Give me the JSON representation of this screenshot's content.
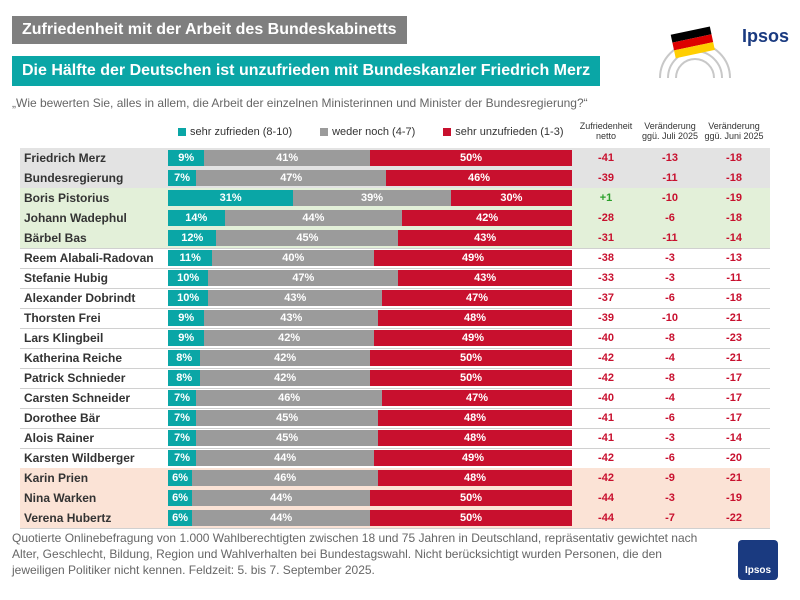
{
  "title": "Zufriedenheit mit der Arbeit des Bundeskabinetts",
  "subtitle": "Die Hälfte der Deutschen ist unzufrieden mit Bundeskanzler Friedrich Merz",
  "question": "„Wie bewerten Sie, alles in allem, die Arbeit der einzelnen Ministerinnen und Minister der Bundesregierung?“",
  "brand": "Ipsos",
  "legend": [
    "sehr zufrieden (8-10)",
    "weder noch (4-7)",
    "sehr unzufrieden (1-3)"
  ],
  "col_netto": "Zufriedenheit netto",
  "col_juli": "Veränderung ggü. Juli 2025",
  "col_juni": "Veränderung ggü. Juni 2025",
  "footnote": "Quotierte Onlinebefragung von 1.000 Wahlberechtigten zwischen 18 und 75 Jahren in Deutschland, repräsentativ gewichtet nach Alter, Geschlecht, Bildung, Region und Wahlverhalten bei Bundestagswahl. Nicht berücksichtigt wurden Personen, die den jeweiligen Politiker nicht kennen. Feldzeit: 5. bis 7. September 2025.",
  "colors": {
    "zufrieden": "#0aa6a6",
    "weder": "#9b9b9b",
    "unzufrieden": "#c8102e",
    "bg_gray": "#e3e3e3",
    "bg_green": "#e3f0d9",
    "bg_peach": "#fbe3d6",
    "pos": "#2aa02a",
    "neg": "#c8102e"
  },
  "chart_data": {
    "type": "bar",
    "orientation": "horizontal",
    "stacked": true,
    "categories": [
      "Friedrich Merz",
      "Bundesregierung",
      "Boris Pistorius",
      "Johann Wadephul",
      "Bärbel Bas",
      "Reem Alabali-Radovan",
      "Stefanie Hubig",
      "Alexander Dobrindt",
      "Thorsten Frei",
      "Lars Klingbeil",
      "Katherina Reiche",
      "Patrick Schnieder",
      "Carsten Schneider",
      "Dorothee Bär",
      "Alois Rainer",
      "Karsten Wildberger",
      "Karin Prien",
      "Nina Warken",
      "Verena Hubertz"
    ],
    "series": [
      {
        "name": "sehr zufrieden (8-10)",
        "values": [
          9,
          7,
          31,
          14,
          12,
          11,
          10,
          10,
          9,
          9,
          8,
          8,
          7,
          7,
          7,
          7,
          6,
          6,
          6
        ]
      },
      {
        "name": "weder noch (4-7)",
        "values": [
          41,
          47,
          39,
          44,
          45,
          40,
          47,
          43,
          43,
          42,
          42,
          42,
          46,
          45,
          45,
          44,
          46,
          44,
          44
        ]
      },
      {
        "name": "sehr unzufrieden (1-3)",
        "values": [
          50,
          46,
          30,
          42,
          43,
          49,
          43,
          47,
          48,
          49,
          50,
          50,
          47,
          48,
          48,
          49,
          48,
          50,
          50
        ]
      }
    ],
    "netto": [
      "-41",
      "-39",
      "+1",
      "-28",
      "-31",
      "-38",
      "-33",
      "-37",
      "-39",
      "-40",
      "-42",
      "-42",
      "-40",
      "-41",
      "-41",
      "-42",
      "-42",
      "-44",
      "-44"
    ],
    "change_juli": [
      "-13",
      "-11",
      "-10",
      "-6",
      "-11",
      "-3",
      "-3",
      "-6",
      "-10",
      "-8",
      "-4",
      "-8",
      "-4",
      "-6",
      "-3",
      "-6",
      "-9",
      "-3",
      "-7"
    ],
    "change_juni": [
      "-18",
      "-18",
      "-19",
      "-18",
      "-14",
      "-13",
      "-11",
      "-18",
      "-21",
      "-23",
      "-21",
      "-17",
      "-17",
      "-17",
      "-14",
      "-20",
      "-21",
      "-19",
      "-22"
    ],
    "row_highlight": [
      "gray",
      "gray",
      "green",
      "green",
      "green",
      "none",
      "none",
      "none",
      "none",
      "none",
      "none",
      "none",
      "none",
      "none",
      "none",
      "none",
      "peach",
      "peach",
      "peach"
    ],
    "xlim": [
      0,
      100
    ]
  }
}
